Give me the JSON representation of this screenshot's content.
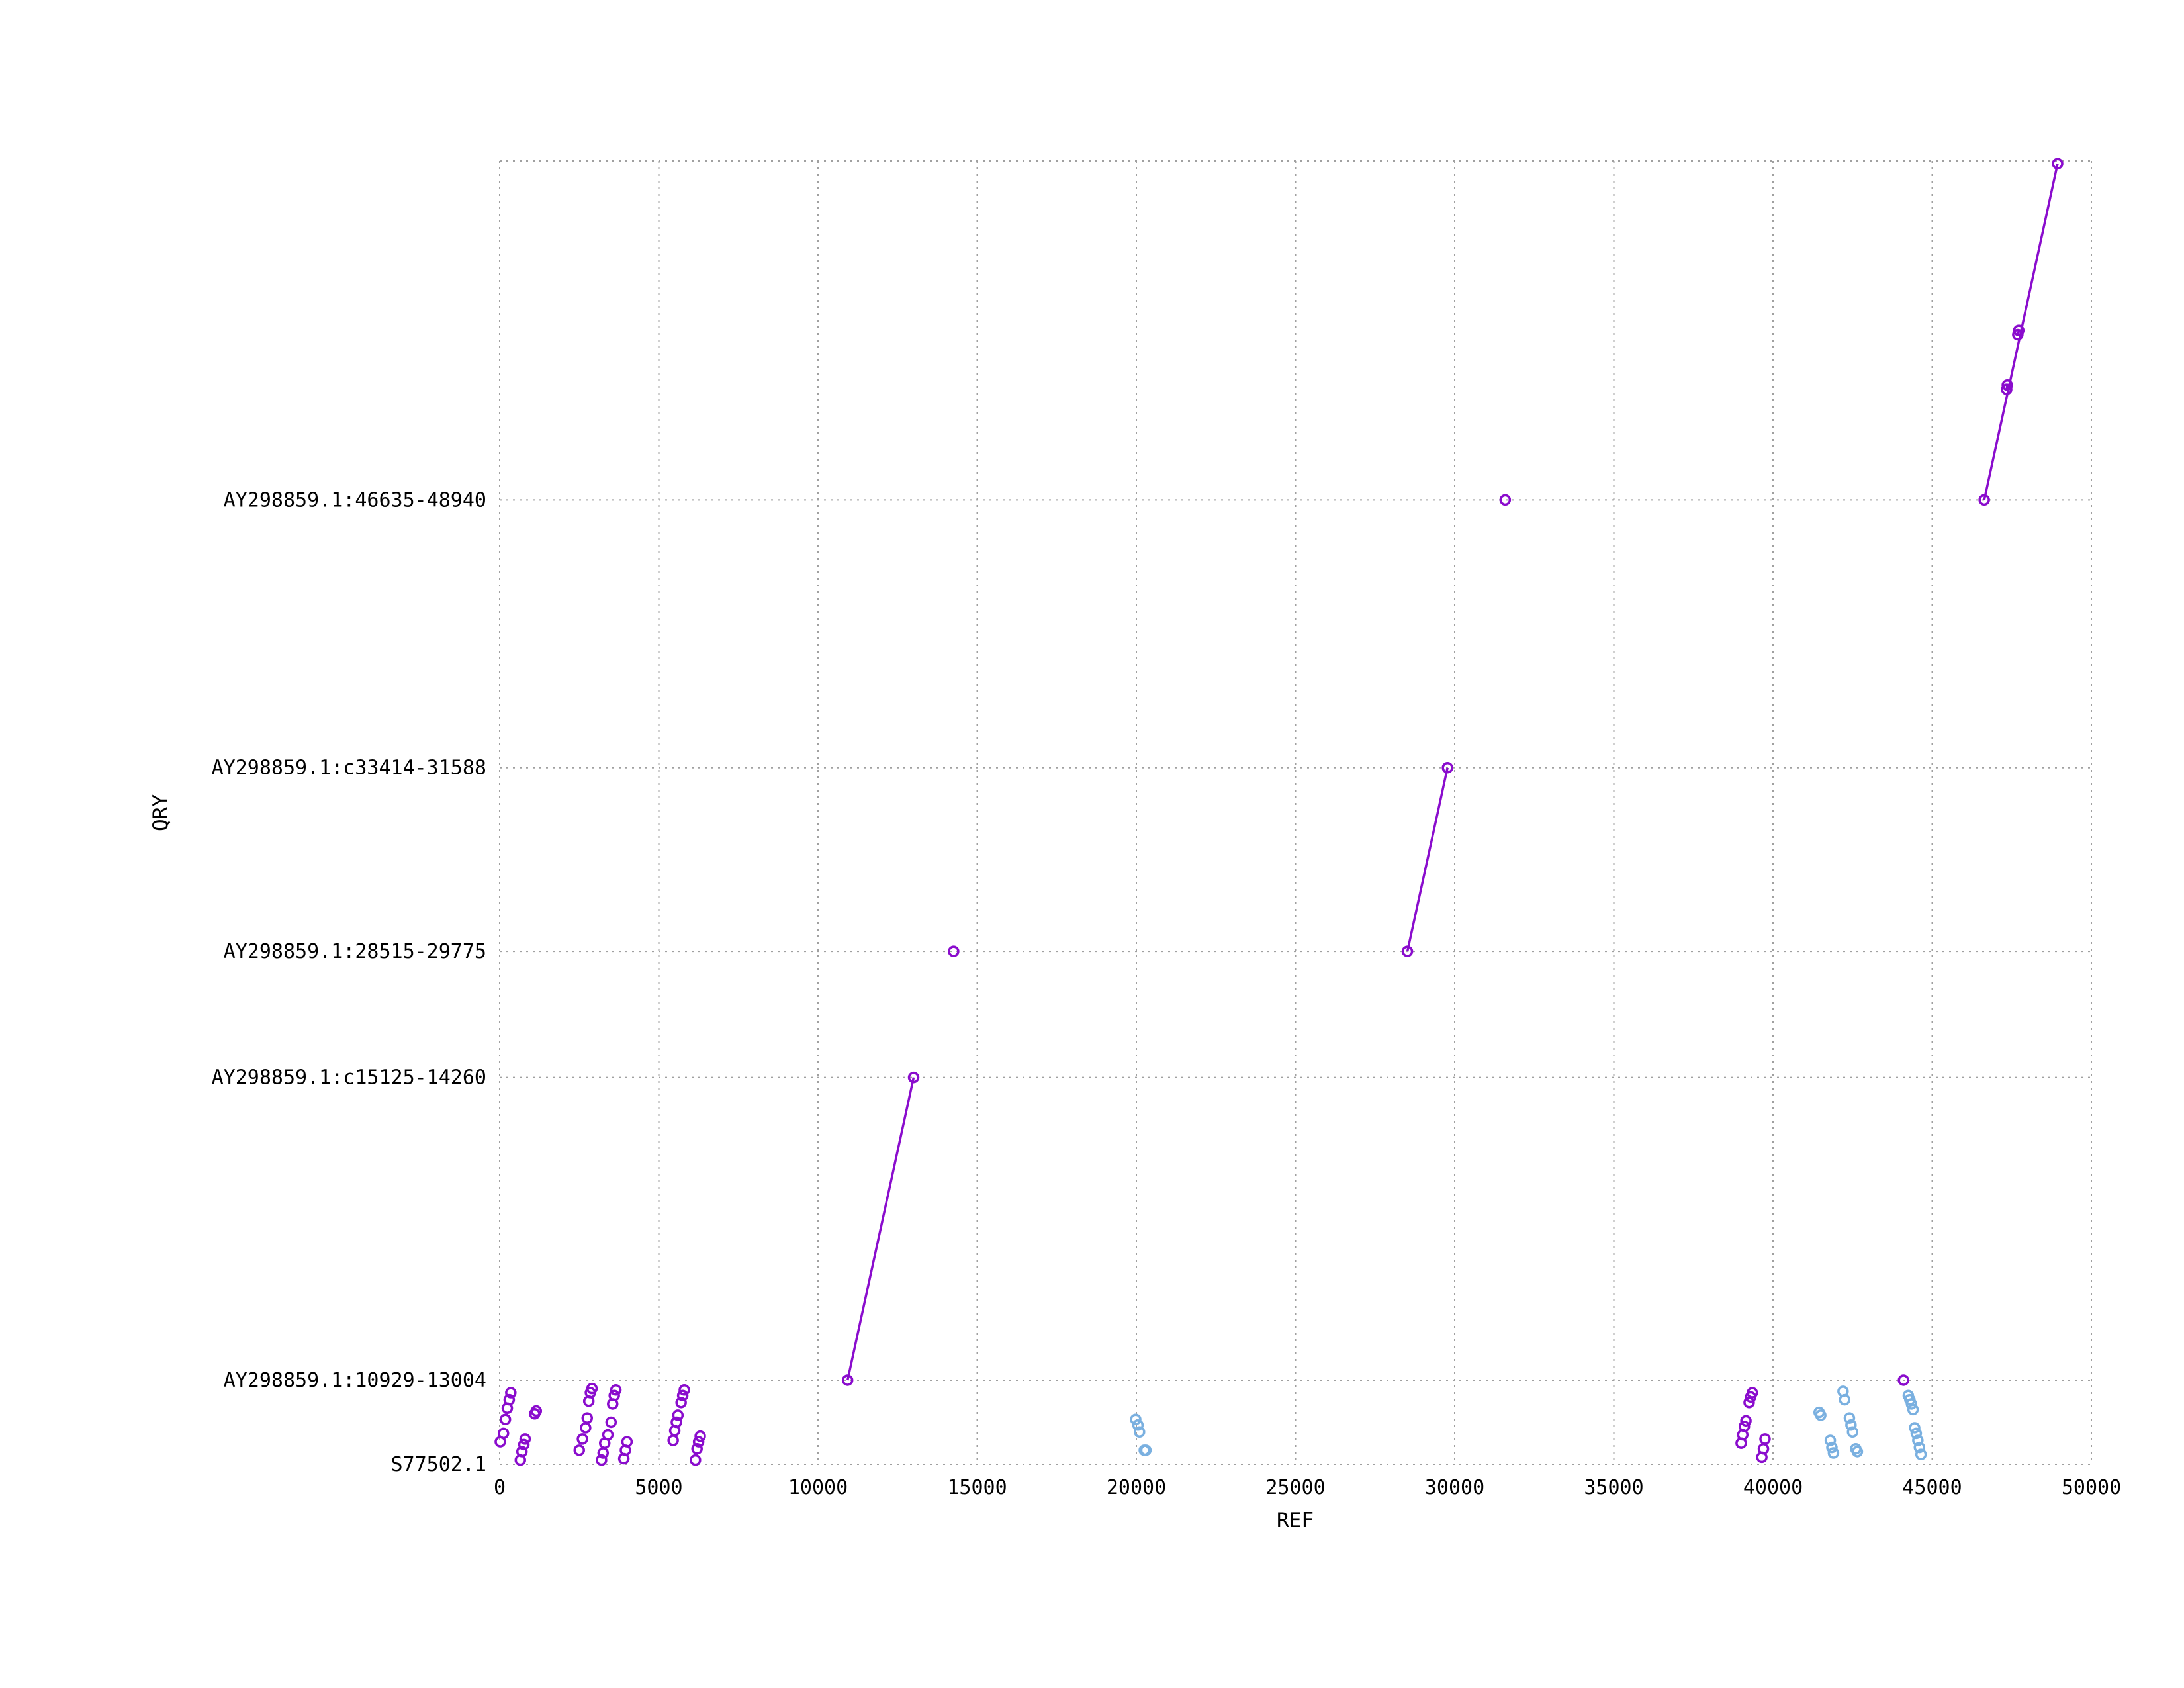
{
  "chart_data": {
    "type": "scatter",
    "title": "",
    "xlabel": "REF",
    "ylabel": "QRY",
    "xlim": [
      0,
      50000
    ],
    "xticks": [
      "0",
      "5000",
      "10000",
      "15000",
      "20000",
      "25000",
      "30000",
      "35000",
      "40000",
      "45000",
      "50000"
    ],
    "ylim": [
      0,
      46500
    ],
    "yticks": [
      {
        "label": "S77502.1",
        "value": 0
      },
      {
        "label": "AY298859.1:10929-13004",
        "value": 3000
      },
      {
        "label": "AY298859.1:c15125-14260",
        "value": 13800
      },
      {
        "label": "AY298859.1:28515-29775",
        "value": 18300
      },
      {
        "label": "AY298859.1:c33414-31588",
        "value": 24850
      },
      {
        "label": "AY298859.1:46635-48940",
        "value": 34400
      }
    ],
    "grid": true,
    "colors": {
      "forward": "#8a0ccd",
      "reverse": "#7ab0e0",
      "grid": "#a0a0a0"
    },
    "series": [
      {
        "strand": "forward",
        "color": "#8a0ccd",
        "segments": [
          {
            "x": [
              10929,
              13004
            ],
            "y": [
              3000,
              13800
            ]
          },
          {
            "x": [
              28515,
              29775
            ],
            "y": [
              18300,
              24850
            ]
          },
          {
            "x": [
              46635,
              48940
            ],
            "y": [
              34400,
              46400
            ]
          },
          {
            "x": [
              47340,
              47360
            ],
            "y": [
              38350,
              38500
            ]
          },
          {
            "x": [
              47690,
              47720
            ],
            "y": [
              40300,
              40450
            ]
          }
        ],
        "points": [
          [
            31588,
            34400
          ],
          [
            14260,
            18300
          ],
          [
            44100,
            3000
          ],
          [
            20,
            800
          ],
          [
            120,
            1100
          ],
          [
            180,
            1600
          ],
          [
            240,
            2000
          ],
          [
            300,
            2300
          ],
          [
            350,
            2550
          ],
          [
            650,
            150
          ],
          [
            700,
            450
          ],
          [
            760,
            700
          ],
          [
            800,
            900
          ],
          [
            1100,
            1800
          ],
          [
            1150,
            1900
          ],
          [
            2500,
            500
          ],
          [
            2600,
            900
          ],
          [
            2700,
            1300
          ],
          [
            2750,
            1650
          ],
          [
            2800,
            2250
          ],
          [
            2850,
            2550
          ],
          [
            2900,
            2700
          ],
          [
            3200,
            150
          ],
          [
            3250,
            400
          ],
          [
            3300,
            750
          ],
          [
            3400,
            1050
          ],
          [
            3500,
            1500
          ],
          [
            3550,
            2150
          ],
          [
            3600,
            2450
          ],
          [
            3650,
            2650
          ],
          [
            3900,
            200
          ],
          [
            3950,
            500
          ],
          [
            4000,
            800
          ],
          [
            5450,
            850
          ],
          [
            5500,
            1200
          ],
          [
            5550,
            1500
          ],
          [
            5600,
            1750
          ],
          [
            5700,
            2200
          ],
          [
            5750,
            2450
          ],
          [
            5800,
            2650
          ],
          [
            6150,
            150
          ],
          [
            6200,
            550
          ],
          [
            6250,
            800
          ],
          [
            6300,
            1000
          ],
          [
            39000,
            750
          ],
          [
            39050,
            1050
          ],
          [
            39100,
            1350
          ],
          [
            39150,
            1550
          ],
          [
            39250,
            2200
          ],
          [
            39300,
            2400
          ],
          [
            39350,
            2550
          ],
          [
            39650,
            250
          ],
          [
            39700,
            550
          ],
          [
            39750,
            900
          ]
        ]
      },
      {
        "strand": "reverse",
        "color": "#7ab0e0",
        "points": [
          [
            19980,
            1600
          ],
          [
            20050,
            1400
          ],
          [
            20100,
            1150
          ],
          [
            20250,
            500
          ],
          [
            20300,
            500
          ],
          [
            41450,
            1850
          ],
          [
            41500,
            1750
          ],
          [
            41800,
            850
          ],
          [
            41850,
            600
          ],
          [
            41900,
            400
          ],
          [
            42200,
            2600
          ],
          [
            42250,
            2300
          ],
          [
            42400,
            1650
          ],
          [
            42450,
            1400
          ],
          [
            42500,
            1150
          ],
          [
            42600,
            550
          ],
          [
            42650,
            450
          ],
          [
            44250,
            2450
          ],
          [
            44300,
            2300
          ],
          [
            44350,
            2150
          ],
          [
            44400,
            1950
          ],
          [
            44450,
            1300
          ],
          [
            44500,
            1100
          ],
          [
            44550,
            850
          ],
          [
            44600,
            600
          ],
          [
            44650,
            350
          ]
        ]
      }
    ]
  }
}
